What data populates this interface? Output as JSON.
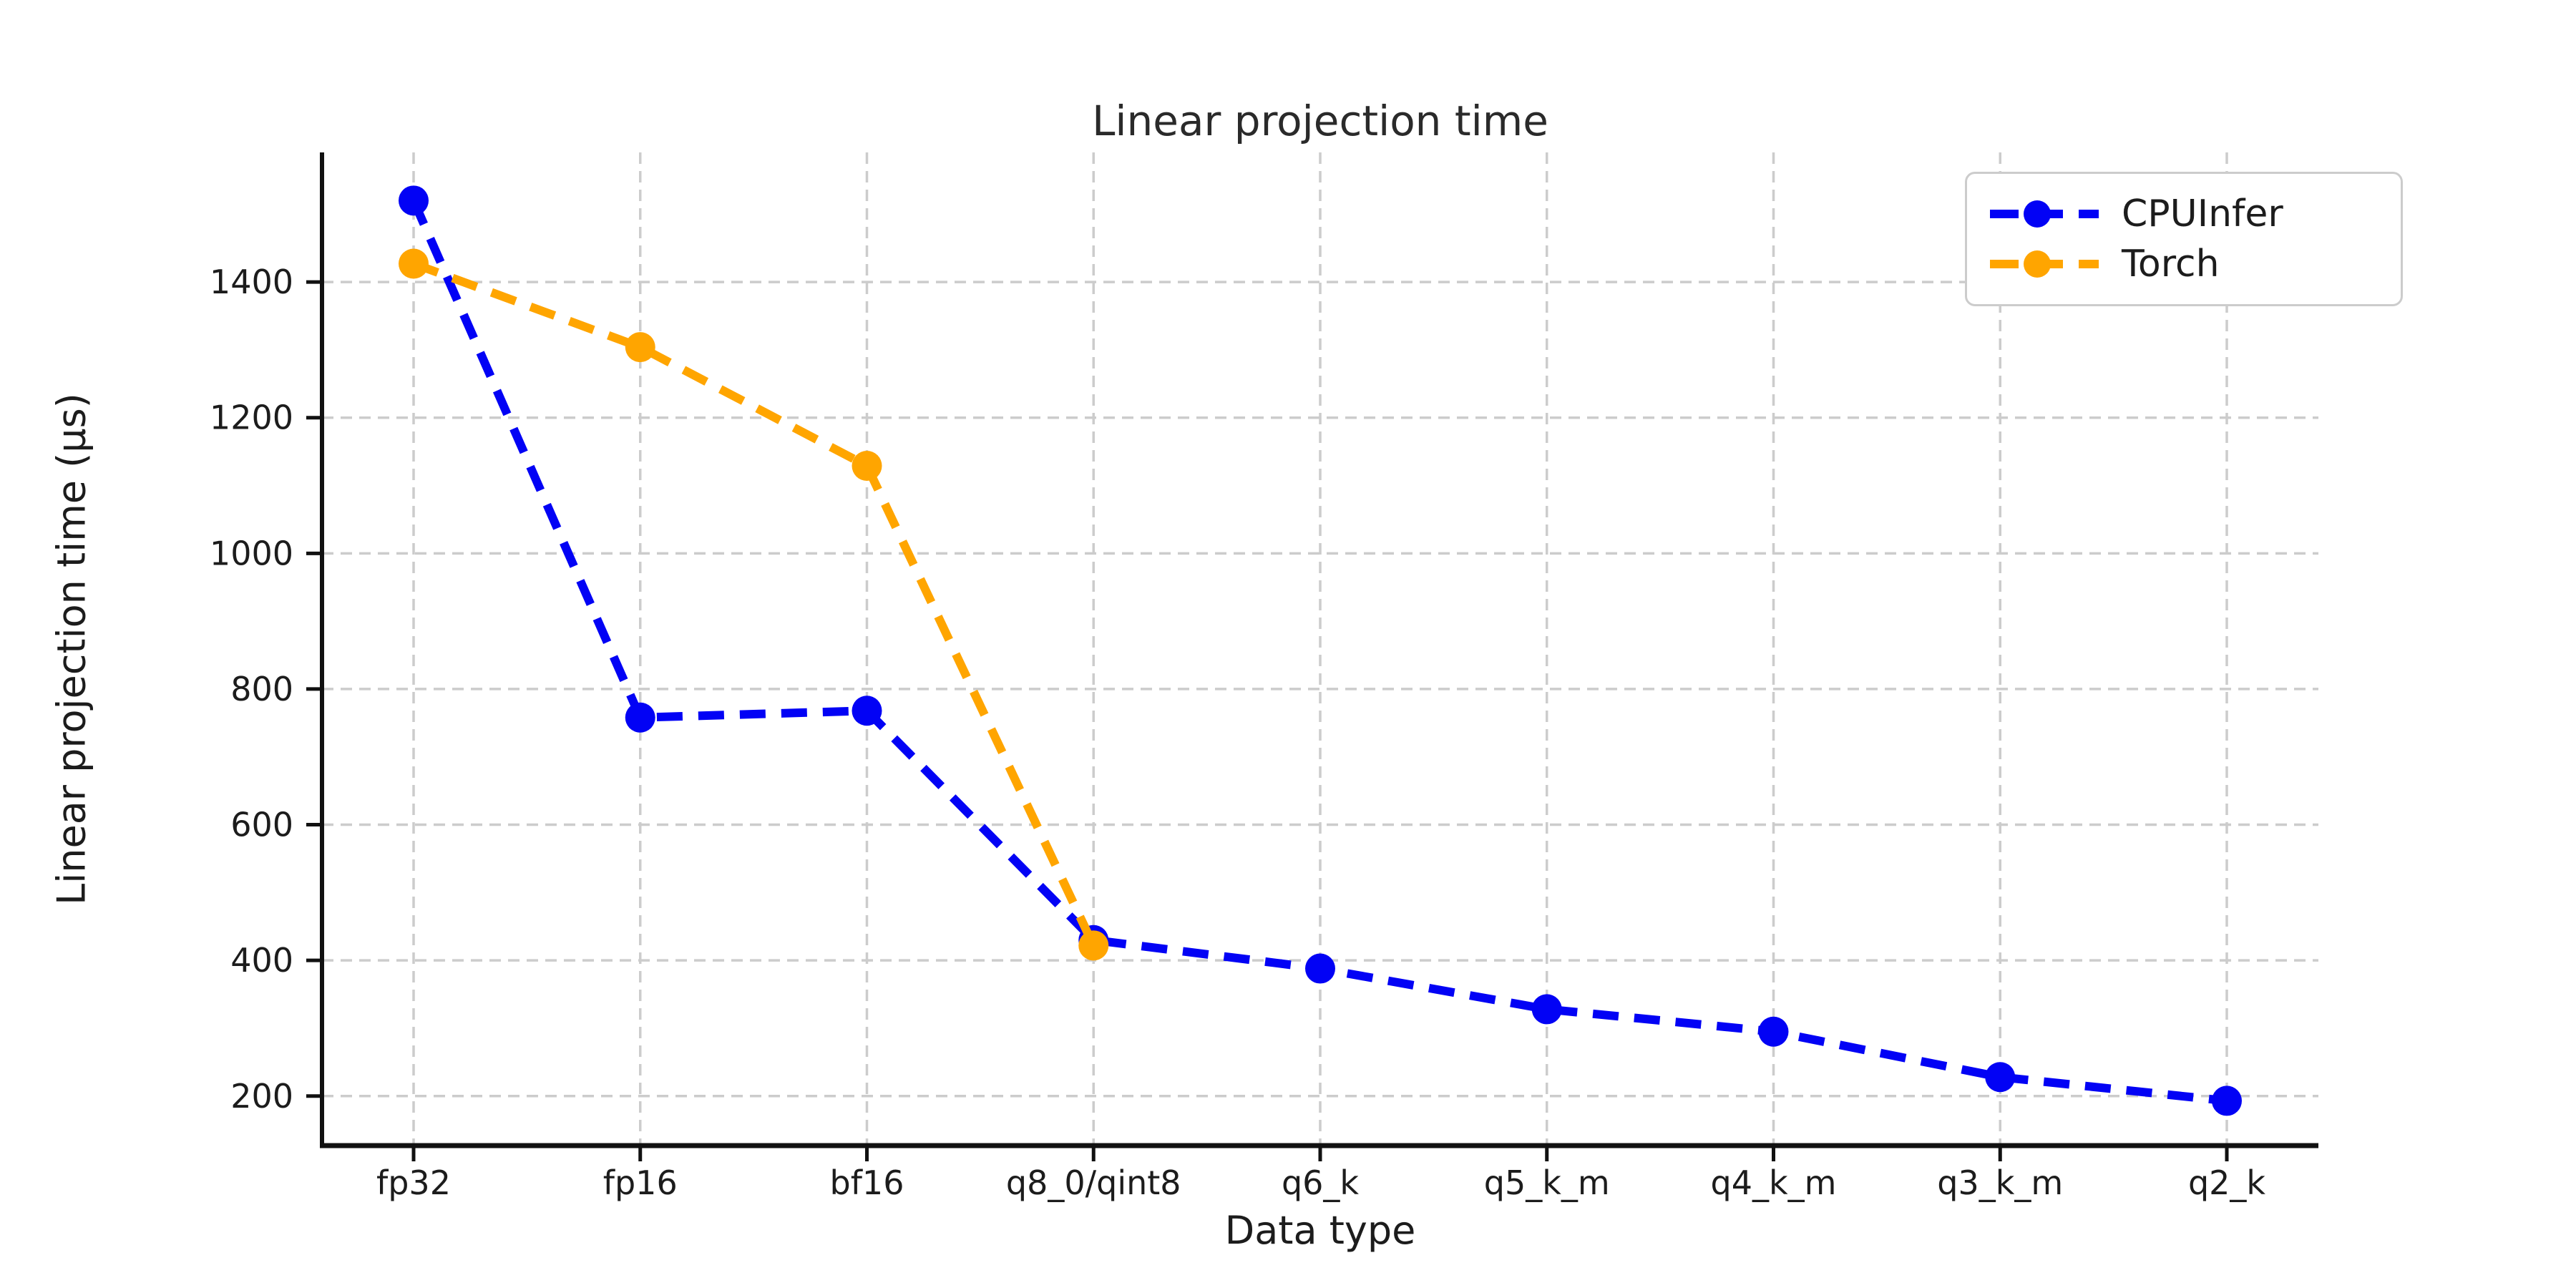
{
  "figure": {
    "background": "#ffffff",
    "text_color": "#1c1c1c",
    "spine_color": "#111111",
    "grid_color": "#cccccc"
  },
  "chart_data": {
    "type": "line",
    "title": "Linear projection time",
    "xlabel": "Data type",
    "ylabel": "Linear projection time (µs)",
    "categories": [
      "fp32",
      "fp16",
      "bf16",
      "q8_0/qint8",
      "q6_k",
      "q5_k_m",
      "q4_k_m",
      "q3_k_m",
      "q2_k"
    ],
    "series": [
      {
        "name": "CPUInfer",
        "color": "#0202f5",
        "values": [
          1520,
          758,
          768,
          430,
          388,
          328,
          295,
          228,
          193
        ]
      },
      {
        "name": "Torch",
        "color": "#ffa500",
        "values": [
          1427,
          1304,
          1129,
          422,
          null,
          null,
          null,
          null,
          null
        ]
      }
    ],
    "yticks": [
      200,
      400,
      600,
      800,
      1000,
      1200,
      1400
    ],
    "ylim": [
      127,
      1591
    ],
    "grid": true,
    "grid_style": "dashed",
    "line_style": "dashed",
    "marker": "circle",
    "legend_position": "upper right"
  },
  "legend": {
    "items": [
      {
        "label": "CPUInfer"
      },
      {
        "label": "Torch"
      }
    ]
  }
}
